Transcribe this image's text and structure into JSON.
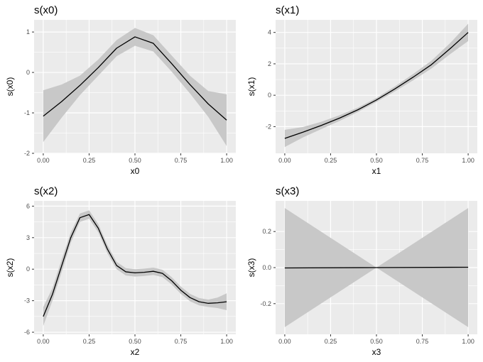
{
  "figure": {
    "layout": "2x2 facets",
    "panel_background": "#ebebeb",
    "grid_color": "#ffffff",
    "band_color": "#c8c8c8",
    "line_color": "#000000"
  },
  "chart_data": [
    {
      "type": "line",
      "title": "s(x0)",
      "xlabel": "x0",
      "ylabel": "s(x0)",
      "xlim": [
        -0.05,
        1.05
      ],
      "ylim": [
        -2.0,
        1.3
      ],
      "xticks": [
        0,
        0.25,
        0.5,
        0.75,
        1
      ],
      "xtick_labels": [
        "0.00",
        "0.25",
        "0.50",
        "0.75",
        "1.00"
      ],
      "yticks": [
        -2,
        -1,
        0,
        1
      ],
      "ytick_labels": [
        "-2",
        "-1",
        "0",
        "1"
      ],
      "grid": true,
      "x": [
        0.0,
        0.1,
        0.2,
        0.3,
        0.4,
        0.5,
        0.6,
        0.7,
        0.8,
        0.9,
        1.0
      ],
      "y": [
        -1.08,
        -0.72,
        -0.32,
        0.12,
        0.6,
        0.88,
        0.72,
        0.22,
        -0.3,
        -0.78,
        -1.18
      ],
      "lower": [
        -1.72,
        -1.12,
        -0.56,
        -0.08,
        0.4,
        0.66,
        0.52,
        0.02,
        -0.52,
        -1.1,
        -1.82
      ],
      "upper": [
        -0.44,
        -0.3,
        -0.08,
        0.32,
        0.8,
        1.1,
        0.92,
        0.42,
        -0.08,
        -0.46,
        -0.54
      ]
    },
    {
      "type": "line",
      "title": "s(x1)",
      "xlabel": "x1",
      "ylabel": "s(x1)",
      "xlim": [
        -0.05,
        1.05
      ],
      "ylim": [
        -3.7,
        4.8
      ],
      "xticks": [
        0,
        0.25,
        0.5,
        0.75,
        1
      ],
      "xtick_labels": [
        "0.00",
        "0.25",
        "0.50",
        "0.75",
        "1.00"
      ],
      "yticks": [
        -2,
        0,
        2,
        4
      ],
      "ytick_labels": [
        "-2",
        "0",
        "2",
        "4"
      ],
      "grid": true,
      "x": [
        0.0,
        0.1,
        0.2,
        0.3,
        0.4,
        0.5,
        0.6,
        0.7,
        0.8,
        0.9,
        1.0
      ],
      "y": [
        -2.75,
        -2.35,
        -1.92,
        -1.45,
        -0.92,
        -0.3,
        0.4,
        1.15,
        1.95,
        2.95,
        4.0
      ],
      "lower": [
        -3.3,
        -2.68,
        -2.15,
        -1.63,
        -1.06,
        -0.43,
        0.24,
        0.95,
        1.7,
        2.6,
        3.45
      ],
      "upper": [
        -2.2,
        -2.02,
        -1.69,
        -1.27,
        -0.78,
        -0.17,
        0.56,
        1.35,
        2.2,
        3.3,
        4.55
      ]
    },
    {
      "type": "line",
      "title": "s(x2)",
      "xlabel": "x2",
      "ylabel": "s(x2)",
      "xlim": [
        -0.05,
        1.05
      ],
      "ylim": [
        -6.2,
        6.5
      ],
      "xticks": [
        0,
        0.25,
        0.5,
        0.75,
        1
      ],
      "xtick_labels": [
        "0.00",
        "0.25",
        "0.50",
        "0.75",
        "1.00"
      ],
      "yticks": [
        -6,
        -3,
        0,
        3,
        6
      ],
      "ytick_labels": [
        "-6",
        "-3",
        "0",
        "3",
        "6"
      ],
      "grid": true,
      "x": [
        0.0,
        0.05,
        0.1,
        0.15,
        0.2,
        0.25,
        0.3,
        0.35,
        0.4,
        0.45,
        0.5,
        0.55,
        0.6,
        0.65,
        0.7,
        0.75,
        0.8,
        0.85,
        0.9,
        0.95,
        1.0
      ],
      "y": [
        -4.5,
        -2.4,
        0.3,
        3.0,
        4.9,
        5.2,
        3.9,
        1.9,
        0.35,
        -0.25,
        -0.35,
        -0.3,
        -0.2,
        -0.4,
        -1.1,
        -2.0,
        -2.7,
        -3.1,
        -3.25,
        -3.2,
        -3.1
      ],
      "lower": [
        -5.4,
        -3.0,
        -0.3,
        2.5,
        4.5,
        4.8,
        3.5,
        1.5,
        0.0,
        -0.6,
        -0.7,
        -0.65,
        -0.55,
        -0.75,
        -1.45,
        -2.35,
        -3.05,
        -3.45,
        -3.6,
        -3.7,
        -3.9
      ],
      "upper": [
        -3.6,
        -1.8,
        0.9,
        3.5,
        5.3,
        5.6,
        4.3,
        2.3,
        0.7,
        0.1,
        0.0,
        0.05,
        0.15,
        -0.05,
        -0.75,
        -1.65,
        -2.35,
        -2.75,
        -2.9,
        -2.7,
        -2.3
      ]
    },
    {
      "type": "line",
      "title": "s(x3)",
      "xlabel": "x3",
      "ylabel": "s(x3)",
      "xlim": [
        -0.05,
        1.05
      ],
      "ylim": [
        -0.37,
        0.37
      ],
      "xticks": [
        0,
        0.25,
        0.5,
        0.75,
        1
      ],
      "xtick_labels": [
        "0.00",
        "0.25",
        "0.50",
        "0.75",
        "1.00"
      ],
      "yticks": [
        -0.2,
        0,
        0.2
      ],
      "ytick_labels": [
        "-0.2",
        "0.0",
        "0.2"
      ],
      "grid": true,
      "x": [
        0.0,
        0.5,
        1.0
      ],
      "y": [
        -0.002,
        0.0,
        0.002
      ],
      "lower": [
        -0.33,
        0.0,
        -0.33
      ],
      "upper": [
        0.33,
        0.0,
        0.33
      ]
    }
  ]
}
